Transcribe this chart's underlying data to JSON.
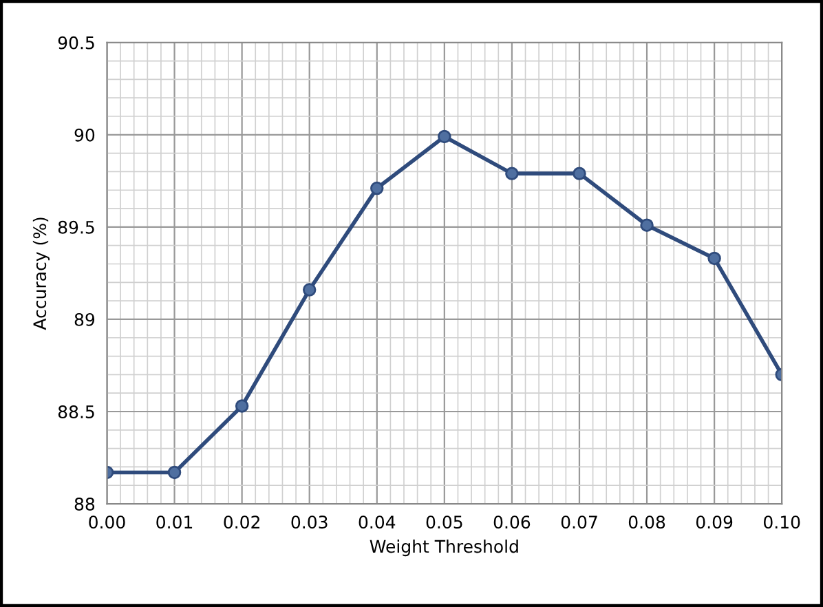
{
  "chart_data": {
    "type": "line",
    "xlabel": "Weight Threshold",
    "ylabel": "Accuracy (%)",
    "x": [
      0.0,
      0.01,
      0.02,
      0.03,
      0.04,
      0.05,
      0.06,
      0.07,
      0.08,
      0.09,
      0.1
    ],
    "series": [
      {
        "color": "#2f4b7c",
        "values": [
          88.17,
          88.17,
          88.53,
          89.16,
          89.71,
          89.99,
          89.79,
          89.79,
          89.51,
          89.33,
          88.7
        ]
      }
    ],
    "xlim": [
      0,
      0.1
    ],
    "xticks": [
      {
        "value": 0,
        "label": "0.00"
      },
      {
        "value": 0.01,
        "label": "0.01"
      },
      {
        "value": 0.02,
        "label": "0.02"
      },
      {
        "value": 0.03,
        "label": "0.03"
      },
      {
        "value": 0.04,
        "label": "0.04"
      },
      {
        "value": 0.05,
        "label": "0.05"
      },
      {
        "value": 0.06,
        "label": "0.06"
      },
      {
        "value": 0.07,
        "label": "0.07"
      },
      {
        "value": 0.08,
        "label": "0.08"
      },
      {
        "value": 0.09,
        "label": "0.09"
      },
      {
        "value": 0.1,
        "label": "0.10"
      }
    ],
    "ylim": [
      88,
      90.5
    ],
    "yticks": [
      88,
      88.5,
      89,
      89.5,
      90,
      90.5
    ],
    "grid": true,
    "marker": "circle",
    "line_style": "solid",
    "legend": false
  }
}
